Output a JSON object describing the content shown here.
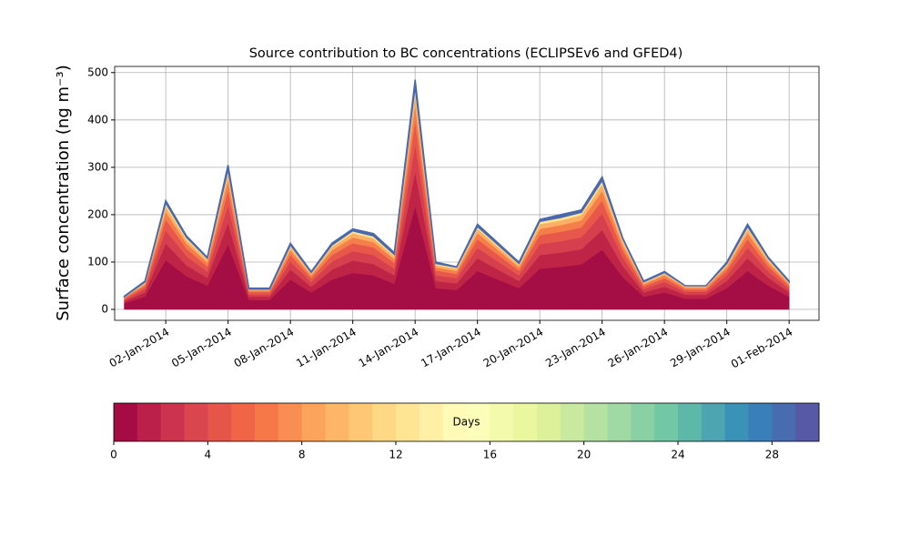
{
  "chart_data": {
    "type": "stacked_area",
    "title": "Source contribution to BC concentrations (ECLIPSEv6 and GFED4)",
    "y_label": "Surface concentration (ng m⁻³)",
    "x": [
      "2013-12-31",
      "2014-01-01",
      "2014-01-02",
      "2014-01-03",
      "2014-01-04",
      "2014-01-05",
      "2014-01-06",
      "2014-01-07",
      "2014-01-08",
      "2014-01-09",
      "2014-01-10",
      "2014-01-11",
      "2014-01-12",
      "2014-01-13",
      "2014-01-14",
      "2014-01-15",
      "2014-01-16",
      "2014-01-17",
      "2014-01-18",
      "2014-01-19",
      "2014-01-20",
      "2014-01-21",
      "2014-01-22",
      "2014-01-23",
      "2014-01-24",
      "2014-01-25",
      "2014-01-26",
      "2014-01-27",
      "2014-01-28",
      "2014-01-29",
      "2014-01-30",
      "2014-01-31",
      "2014-02-01"
    ],
    "series": [
      {
        "color": "#a50d45",
        "values": [
          13,
          27,
          104,
          70,
          50,
          137,
          20,
          20,
          63,
          36,
          63,
          77,
          72,
          54,
          218,
          45,
          41,
          81,
          63,
          45,
          86,
          90,
          95,
          126,
          68,
          27,
          36,
          23,
          23,
          45,
          81,
          50,
          27
        ]
      },
      {
        "color": "#bf2447",
        "values": [
          4,
          9,
          35,
          23,
          17,
          46,
          7,
          7,
          21,
          12,
          21,
          26,
          24,
          18,
          73,
          15,
          14,
          27,
          21,
          15,
          29,
          30,
          32,
          42,
          23,
          9,
          12,
          8,
          8,
          15,
          27,
          17,
          9
        ]
      },
      {
        "color": "#d63f4e",
        "values": [
          3,
          7,
          28,
          19,
          13,
          37,
          5,
          5,
          17,
          10,
          17,
          20,
          19,
          14,
          58,
          12,
          11,
          22,
          17,
          12,
          23,
          24,
          25,
          34,
          18,
          7,
          10,
          6,
          6,
          12,
          22,
          13,
          7
        ]
      },
      {
        "color": "#e8584a",
        "values": [
          3,
          6,
          23,
          16,
          11,
          31,
          5,
          5,
          14,
          8,
          14,
          17,
          16,
          12,
          49,
          10,
          9,
          18,
          14,
          10,
          19,
          20,
          21,
          28,
          15,
          6,
          8,
          5,
          5,
          10,
          18,
          11,
          6
        ]
      },
      {
        "color": "#f67e4b",
        "values": [
          2,
          4,
          16,
          11,
          8,
          21,
          3,
          3,
          10,
          6,
          10,
          12,
          11,
          8,
          34,
          7,
          6,
          13,
          10,
          7,
          13,
          14,
          15,
          20,
          11,
          4,
          6,
          4,
          4,
          7,
          13,
          8,
          4
        ]
      },
      {
        "color": "#fdb063",
        "values": [
          1,
          3,
          12,
          8,
          6,
          15,
          2,
          2,
          7,
          4,
          7,
          9,
          8,
          6,
          24,
          5,
          5,
          9,
          7,
          5,
          10,
          10,
          11,
          14,
          8,
          3,
          4,
          3,
          3,
          5,
          9,
          6,
          3
        ]
      },
      {
        "color": "#fee593",
        "values": [
          1,
          2,
          7,
          5,
          3,
          9,
          1,
          1,
          4,
          2,
          4,
          5,
          5,
          4,
          15,
          3,
          3,
          5,
          4,
          3,
          6,
          6,
          6,
          8,
          5,
          2,
          2,
          1,
          1,
          3,
          5,
          3,
          2
        ]
      },
      {
        "color": "#4a68ad",
        "values": [
          1,
          2,
          5,
          3,
          2,
          9,
          2,
          2,
          4,
          2,
          4,
          4,
          5,
          4,
          14,
          3,
          1,
          5,
          4,
          3,
          4,
          6,
          5,
          8,
          2,
          2,
          2,
          0,
          0,
          3,
          5,
          2,
          2
        ]
      }
    ],
    "xlim": [
      "2013-12-30T13:00",
      "2014-02-02T10:30"
    ],
    "xticks": [
      {
        "value": "2014-01-02",
        "label": "02-Jan-2014"
      },
      {
        "value": "2014-01-05",
        "label": "05-Jan-2014"
      },
      {
        "value": "2014-01-08",
        "label": "08-Jan-2014"
      },
      {
        "value": "2014-01-11",
        "label": "11-Jan-2014"
      },
      {
        "value": "2014-01-14",
        "label": "14-Jan-2014"
      },
      {
        "value": "2014-01-17",
        "label": "17-Jan-2014"
      },
      {
        "value": "2014-01-20",
        "label": "20-Jan-2014"
      },
      {
        "value": "2014-01-23",
        "label": "23-Jan-2014"
      },
      {
        "value": "2014-01-26",
        "label": "26-Jan-2014"
      },
      {
        "value": "2014-01-29",
        "label": "29-Jan-2014"
      },
      {
        "value": "2014-02-01",
        "label": "01-Feb-2014"
      }
    ],
    "ylim": [
      -23,
      513
    ],
    "yticks": [
      0,
      100,
      200,
      300,
      400,
      500
    ],
    "grid": true,
    "colorbar": {
      "label": "Days",
      "lim": [
        0,
        30
      ],
      "bins": 30,
      "ticks": [
        0,
        4,
        8,
        12,
        16,
        20,
        24,
        28
      ],
      "colormap": [
        "#9e0142",
        "#d53e4f",
        "#f46d43",
        "#fdae61",
        "#fee08b",
        "#ffffbf",
        "#e6f598",
        "#abdda4",
        "#66c2a5",
        "#3288bd",
        "#5e4fa2"
      ]
    }
  }
}
